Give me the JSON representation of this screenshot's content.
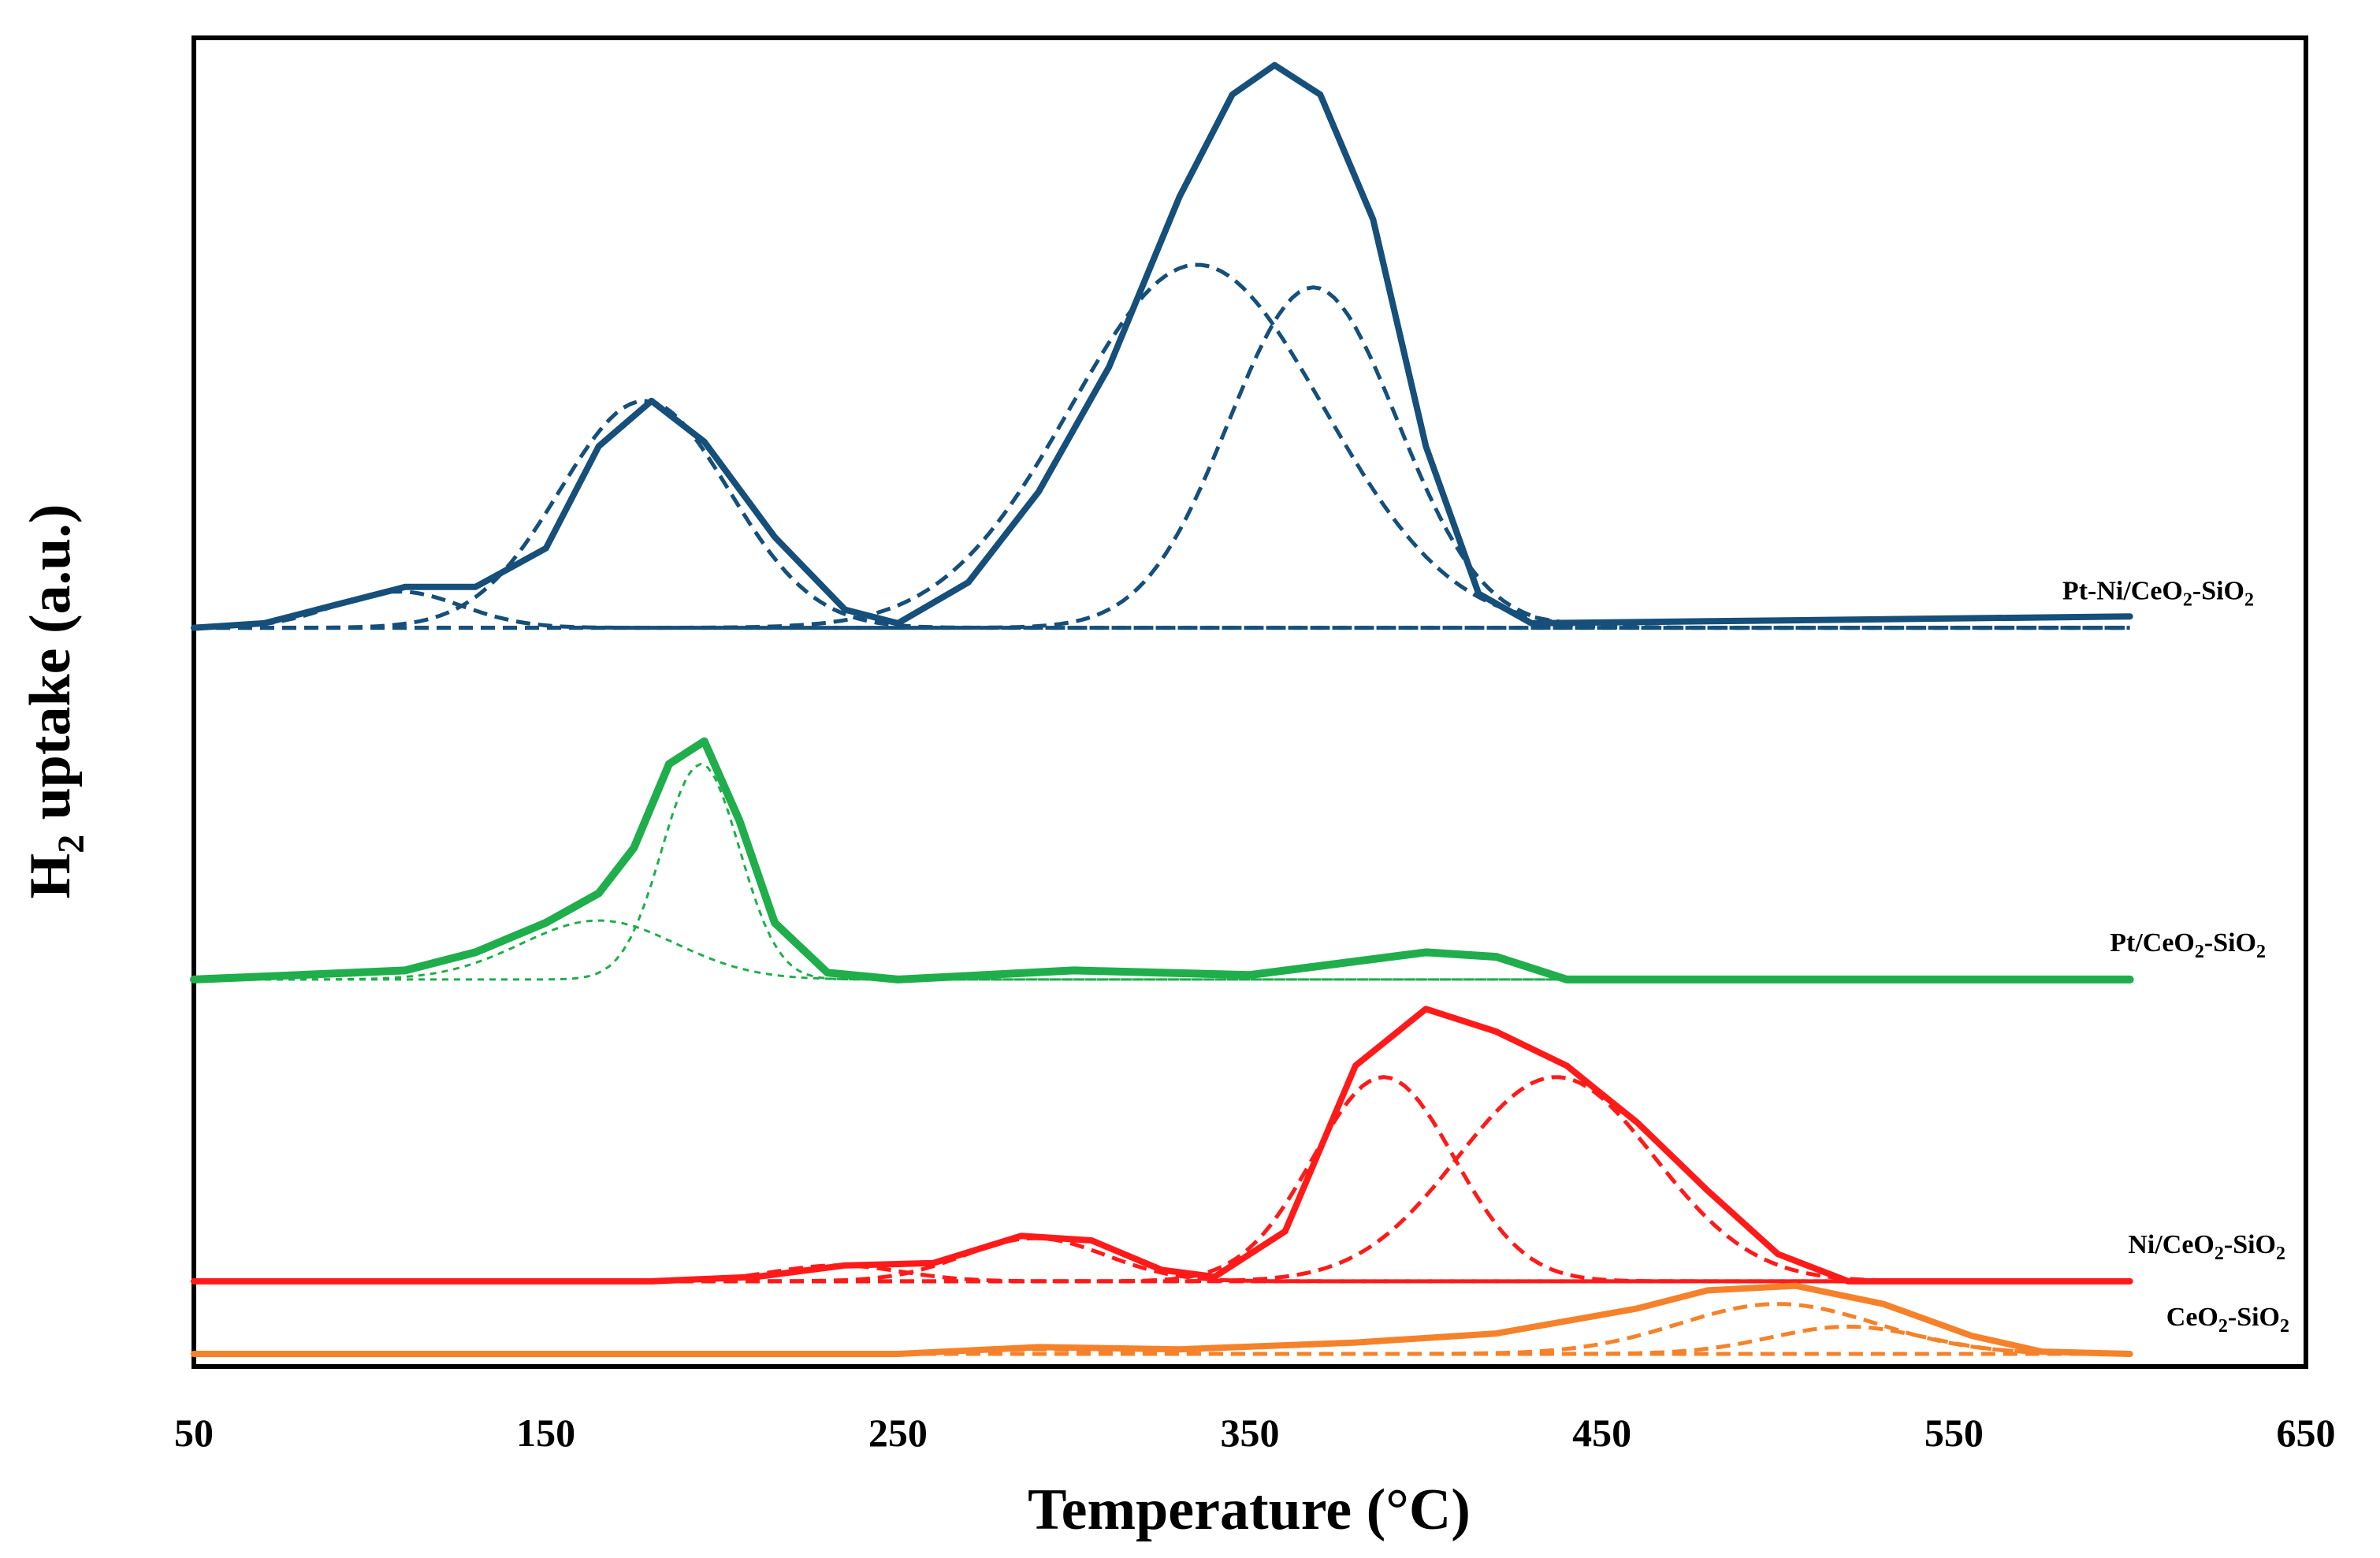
{
  "chart_data": {
    "type": "line",
    "title": "",
    "xlabel": "Temperature (°C)",
    "ylabel": "H2 uptake (a.u.)",
    "xlim": [
      50,
      650
    ],
    "xticks": [
      50,
      150,
      250,
      350,
      450,
      550,
      650
    ],
    "yticks_shown": false,
    "grid": false,
    "series": [
      {
        "name": "Pt-Ni/CeO2-SiO2",
        "label_main": "Pt-Ni/CeO",
        "label_sub": "2",
        "label_tail": "-SiO",
        "label_sub2": "2",
        "color": "#154f7a",
        "baseline": 0.0,
        "offset": 3.2,
        "x": [
          50,
          70,
          90,
          110,
          130,
          150,
          165,
          180,
          195,
          215,
          235,
          250,
          270,
          290,
          310,
          330,
          345,
          357,
          370,
          385,
          400,
          415,
          430,
          600
        ],
        "y": [
          0.0,
          0.02,
          0.1,
          0.18,
          0.18,
          0.35,
          0.8,
          1.0,
          0.82,
          0.4,
          0.08,
          0.02,
          0.2,
          0.6,
          1.15,
          1.9,
          2.35,
          2.48,
          2.35,
          1.8,
          0.8,
          0.15,
          0.02,
          0.05
        ],
        "peaks": [
          {
            "center": 108,
            "width": 18,
            "height": 0.16
          },
          {
            "center": 178,
            "width": 24,
            "height": 1.0
          },
          {
            "center": 335,
            "width": 36,
            "height": 1.6
          },
          {
            "center": 368,
            "width": 24,
            "height": 1.5
          }
        ]
      },
      {
        "name": "Pt/CeO2-SiO2",
        "label_main": "Pt/CeO",
        "label_sub": "2",
        "label_tail": "-SiO",
        "label_sub2": "2",
        "color": "#1fae4b",
        "baseline": 0.0,
        "offset": 1.65,
        "x": [
          50,
          80,
          110,
          130,
          150,
          165,
          175,
          185,
          195,
          205,
          215,
          230,
          250,
          300,
          350,
          380,
          400,
          420,
          440,
          600
        ],
        "y": [
          0.0,
          0.02,
          0.04,
          0.12,
          0.25,
          0.38,
          0.58,
          0.95,
          1.05,
          0.7,
          0.25,
          0.03,
          0.0,
          0.04,
          0.02,
          0.08,
          0.12,
          0.1,
          0.0,
          0.0
        ],
        "peaks": [
          {
            "center": 165,
            "width": 22,
            "height": 0.26
          },
          {
            "center": 194,
            "width": 11,
            "height": 0.95
          }
        ]
      },
      {
        "name": "Ni/CeO2-SiO2",
        "label_main": "Ni/CeO",
        "label_sub": "2",
        "label_tail": "-SiO",
        "label_sub2": "2",
        "color": "#ff1a1a",
        "baseline": 0.0,
        "offset": 0.32,
        "x": [
          50,
          180,
          210,
          235,
          260,
          285,
          305,
          325,
          340,
          360,
          380,
          400,
          420,
          440,
          460,
          480,
          500,
          520,
          600
        ],
        "y": [
          0.0,
          0.0,
          0.02,
          0.07,
          0.08,
          0.2,
          0.18,
          0.05,
          0.02,
          0.22,
          0.95,
          1.2,
          1.1,
          0.95,
          0.7,
          0.4,
          0.12,
          0.0,
          0.0
        ],
        "peaks": [
          {
            "center": 233,
            "width": 18,
            "height": 0.07
          },
          {
            "center": 289,
            "width": 20,
            "height": 0.19
          },
          {
            "center": 388,
            "width": 20,
            "height": 0.9
          },
          {
            "center": 437,
            "width": 28,
            "height": 0.9
          }
        ]
      },
      {
        "name": "CeO2-SiO2",
        "label_main": "CeO",
        "label_sub": "2",
        "label_tail": "-SiO",
        "label_sub2": "2",
        "color": "#f5822a",
        "baseline": 0.0,
        "offset": 0.0,
        "x": [
          50,
          250,
          290,
          330,
          380,
          420,
          460,
          480,
          505,
          530,
          555,
          575,
          600
        ],
        "y": [
          0.0,
          0.0,
          0.03,
          0.02,
          0.05,
          0.09,
          0.2,
          0.28,
          0.3,
          0.22,
          0.08,
          0.01,
          0.0
        ],
        "peaks": [
          {
            "center": 290,
            "width": 18,
            "height": 0.02
          },
          {
            "center": 500,
            "width": 28,
            "height": 0.22
          },
          {
            "center": 520,
            "width": 22,
            "height": 0.12
          }
        ]
      }
    ]
  }
}
